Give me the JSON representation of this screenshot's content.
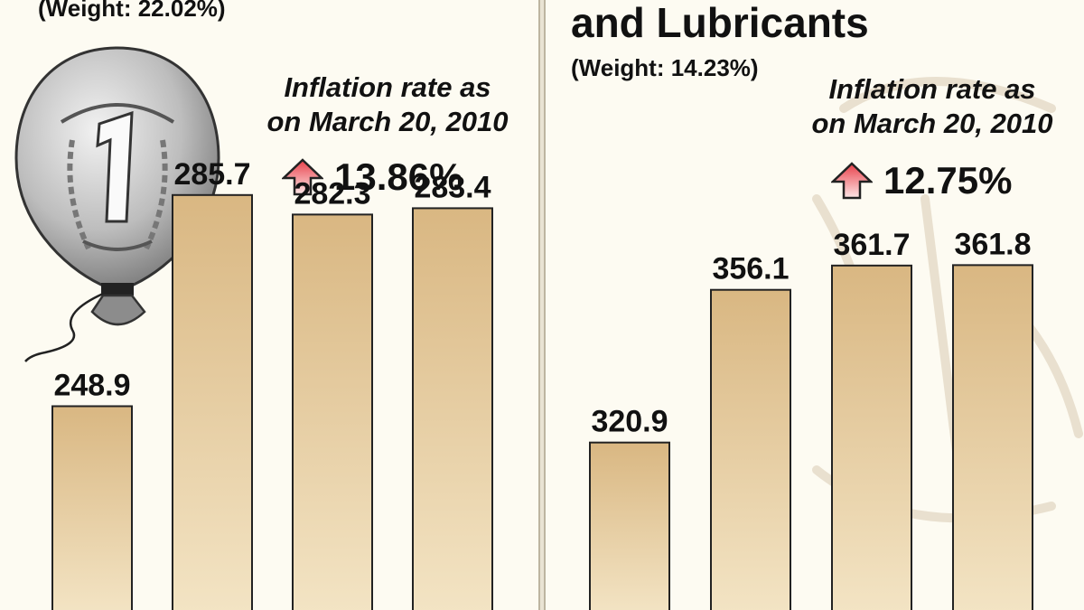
{
  "chart_data": [
    {
      "type": "bar",
      "title": "",
      "weight_label": "(Weight: 22.02%)",
      "inflation_label_line1": "Inflation rate as",
      "inflation_label_line2": "on March 20, 2010",
      "inflation_value": "13.86%",
      "values": [
        248.9,
        285.7,
        282.3,
        283.4
      ],
      "value_labels": [
        "248.9",
        "285.7",
        "282.3",
        "283.4"
      ],
      "xlabel": "",
      "ylabel": ""
    },
    {
      "type": "bar",
      "title": "and Lubricants",
      "weight_label": "(Weight: 14.23%)",
      "inflation_label_line1": "Inflation rate as",
      "inflation_label_line2": "on March 20, 2010",
      "inflation_value": "12.75%",
      "values": [
        320.9,
        356.1,
        361.7,
        361.8
      ],
      "value_labels": [
        "320.9",
        "356.1",
        "361.7",
        "361.8"
      ],
      "xlabel": "",
      "ylabel": ""
    }
  ],
  "colors": {
    "bar_top": "#d9b782",
    "bar_bottom": "#f3e4c4",
    "arrow_top": "#e8404a",
    "arrow_bottom": "#fde6e6"
  },
  "icons": {
    "coin": "one-rupee-coin-balloon-icon",
    "arrow": "up-arrow-icon"
  }
}
